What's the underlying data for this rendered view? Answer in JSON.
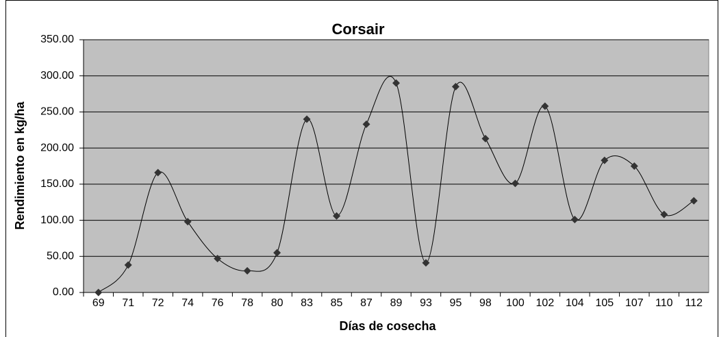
{
  "chart_data": {
    "type": "line",
    "title": "Corsair",
    "x_label": "Días de cosecha",
    "y_label": "Rendimiento en kg/ha",
    "categories": [
      "69",
      "71",
      "72",
      "74",
      "76",
      "78",
      "80",
      "83",
      "85",
      "87",
      "89",
      "93",
      "95",
      "98",
      "100",
      "102",
      "104",
      "105",
      "107",
      "110",
      "112"
    ],
    "series": [
      {
        "name": "Corsair",
        "color": "#000000",
        "marker_color": "#333333",
        "values": [
          0,
          38,
          166,
          98,
          47,
          30,
          55,
          240,
          106,
          233,
          290,
          41,
          285,
          213,
          151,
          258,
          101,
          183,
          175,
          108,
          127
        ]
      }
    ],
    "ylim": [
      0,
      350
    ],
    "yticks": [
      {
        "value": 0,
        "label": "0.00"
      },
      {
        "value": 50,
        "label": "50.00"
      },
      {
        "value": 100,
        "label": "100.00"
      },
      {
        "value": 150,
        "label": "150.00"
      },
      {
        "value": 200,
        "label": "200.00"
      },
      {
        "value": 250,
        "label": "250.00"
      },
      {
        "value": 300,
        "label": "300.00"
      },
      {
        "value": 350,
        "label": "350.00"
      }
    ],
    "grid": true,
    "smooth": true,
    "plot_background": "#c0c0c0"
  }
}
